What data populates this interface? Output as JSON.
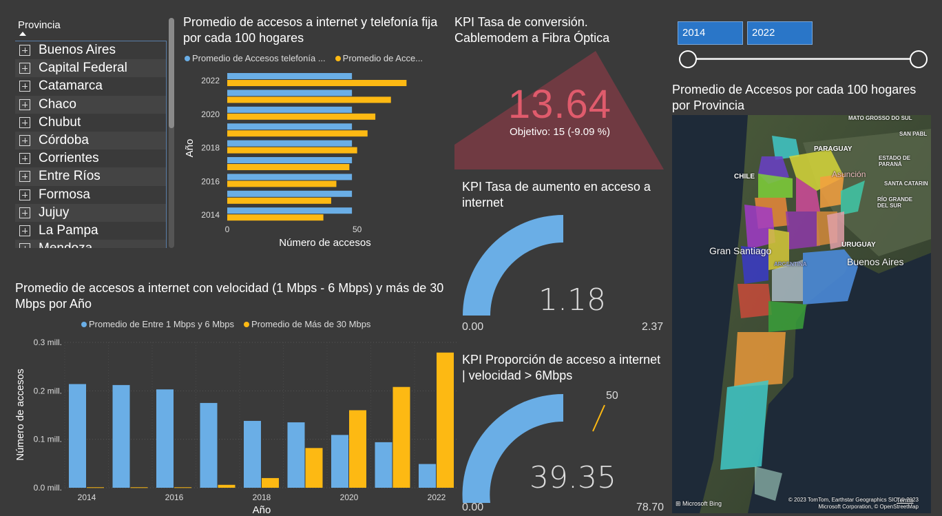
{
  "slicer": {
    "header": "Provincia",
    "items": [
      "Buenos Aires",
      "Capital Federal",
      "Catamarca",
      "Chaco",
      "Chubut",
      "Córdoba",
      "Corrientes",
      "Entre Ríos",
      "Formosa",
      "Jujuy",
      "La Pampa",
      "Mendoza"
    ]
  },
  "chart1": {
    "title": "Promedio de accesos a internet y telefonía fija por cada 100 hogares",
    "legend": [
      "Promedio de Accesos telefonía ...",
      "Promedio de Acce..."
    ],
    "colors": {
      "blue": "#6aaee6",
      "yellow": "#fdb913"
    },
    "chart_data": {
      "type": "bar",
      "orientation": "horizontal",
      "categories": [
        "2022",
        "2021",
        "2020",
        "2019",
        "2018",
        "2017",
        "2016",
        "2015",
        "2014"
      ],
      "tick_labels": [
        "2022",
        "2020",
        "2018",
        "2016",
        "2014"
      ],
      "series": [
        {
          "name": "Promedio de Accesos telefonía ...",
          "values": [
            48,
            48,
            48,
            48,
            48,
            48,
            48,
            48,
            48
          ]
        },
        {
          "name": "Promedio de Acce...",
          "values": [
            69,
            63,
            57,
            54,
            50,
            47,
            42,
            40,
            37
          ]
        }
      ],
      "xlabel": "Número de accesos",
      "ylabel": "Año",
      "xticks": [
        "0",
        "50"
      ],
      "xlim": [
        0,
        75
      ]
    }
  },
  "chart2": {
    "title": "Promedio de accesos a internet con velocidad (1 Mbps - 6 Mbps) y más de 30 Mbps por Año",
    "legend": [
      "Promedio de Entre 1 Mbps y 6 Mbps",
      "Promedio de Más de 30 Mbps"
    ],
    "chart_data": {
      "type": "bar",
      "categories": [
        "2014",
        "2015",
        "2016",
        "2017",
        "2018",
        "2019",
        "2020",
        "2021",
        "2022"
      ],
      "tick_labels": [
        "2014",
        "2016",
        "2018",
        "2020",
        "2022"
      ],
      "series": [
        {
          "name": "Promedio de Entre 1 Mbps y 6 Mbps",
          "values": [
            0.214,
            0.212,
            0.203,
            0.175,
            0.138,
            0.135,
            0.109,
            0.094,
            0.049
          ]
        },
        {
          "name": "Promedio de Más de 30 Mbps",
          "values": [
            0.001,
            0.001,
            0.001,
            0.006,
            0.02,
            0.082,
            0.16,
            0.208,
            0.279
          ]
        }
      ],
      "xlabel": "Año",
      "ylabel": "Número de accesos",
      "yticks": [
        "0.3 mill.",
        "0.2 mill.",
        "0.1 mill.",
        "0.0 mill."
      ],
      "ylim": [
        0,
        0.3
      ]
    }
  },
  "kpi1": {
    "title": "KPI Tasa de conversión. Cablemodem a Fibra Óptica",
    "value": "13.64",
    "target": "Objetivo: 15 (-9.09 %)"
  },
  "kpi2": {
    "title": "KPI Tasa de aumento en acceso a internet",
    "value": "1.18",
    "min": "0.00",
    "max": "2.37",
    "fraction": 0.5
  },
  "kpi3": {
    "title": "KPI Proporción de acceso a internet | velocidad > 6Mbps",
    "value": "39.35",
    "min": "0.00",
    "max": "78.70",
    "target": "50",
    "fraction": 0.5
  },
  "date_slicer": {
    "start": "2014",
    "end": "2022"
  },
  "map": {
    "title": "Promedio de Accesos por cada 100 hogares por Provincia",
    "labels": {
      "matogrosso": "MATO GROSSO DO SUL",
      "sanpablo": "SAN PABL",
      "paraguay": "PARAGUAY",
      "parana": "ESTADO DE PARANÁ",
      "asuncion": "Asunción",
      "chile": "CHILE",
      "catarina": "SANTA CATARIN",
      "riogrande": "RÍO GRANDE DEL SUR",
      "santiago": "Gran Santiago",
      "uruguay": "URUGUAY",
      "buenosaires": "Buenos Aires",
      "argentina": "ARGENTINA"
    },
    "attribution": "© 2023 TomTom, Earthstar Geographics SIO, © 2023 Microsoft Corporation, © OpenStreetMap",
    "terms": "Terms",
    "bing": "Microsoft Bing"
  }
}
